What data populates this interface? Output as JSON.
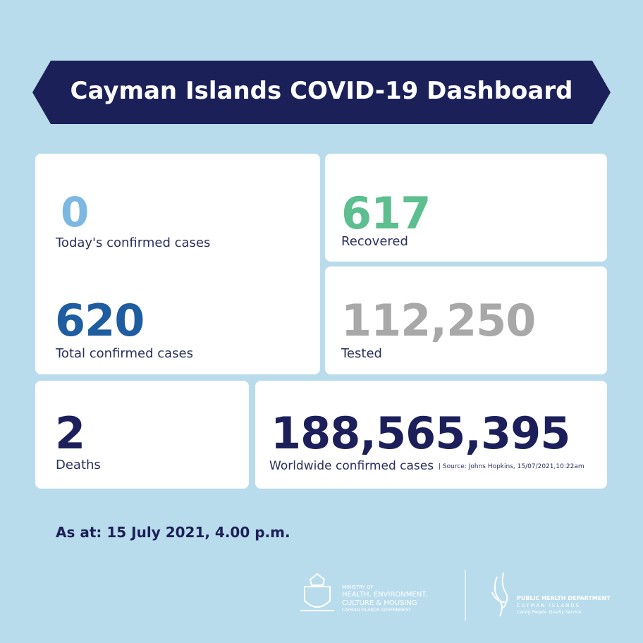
{
  "header": {
    "title": "Cayman Islands COVID-19 Dashboard"
  },
  "cards": [
    {
      "value": "0",
      "label": "Today's confirmed cases"
    },
    {
      "value": "620",
      "label": "Total confirmed cases"
    },
    {
      "value": "617",
      "label": "Recovered"
    },
    {
      "value": "112,250",
      "label": "Tested"
    },
    {
      "value": "2",
      "label": "Deaths"
    },
    {
      "value": "188,565,395",
      "label": "Worldwide confirmed cases",
      "source": "| Source: Johns Hopkins, 15/07/2021,10:22am"
    }
  ],
  "as_at": "As at: 15 July 2021, 4.00 p.m.",
  "footer": {
    "ministry": [
      "MINISTRY OF",
      "HEALTH, ENVIRONMENT,",
      "CULTURE & HOUSING",
      "CAYMAN ISLANDS GOVERNMENT"
    ],
    "department": [
      "PUBLIC HEALTH DEPARTMENT",
      "CAYMAN ISLANDS",
      "Caring People. Quality Service."
    ]
  }
}
